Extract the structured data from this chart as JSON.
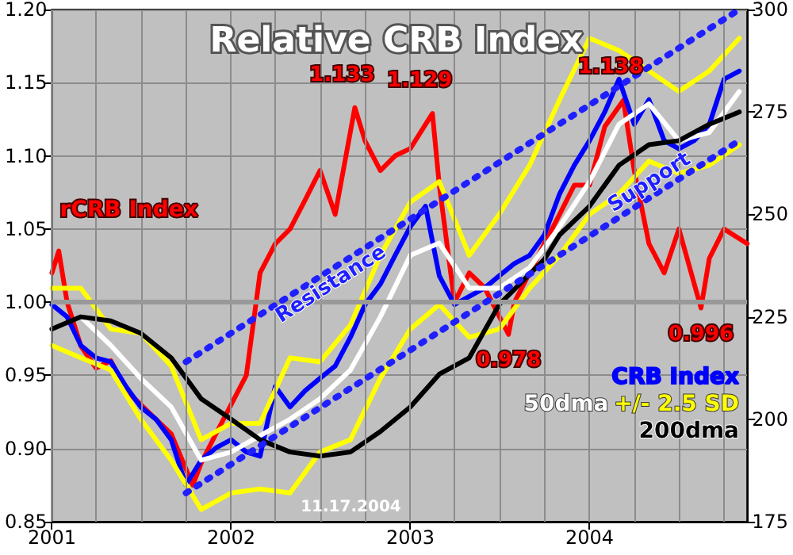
{
  "chart_data": {
    "type": "line",
    "title": "Relative CRB Index",
    "xlim": [
      "2001-01-01",
      "2004-11-17"
    ],
    "xticks": [
      "2001",
      {
        "value": "2001-04",
        "label": null
      },
      {
        "value": "2001-07",
        "label": null
      },
      {
        "value": "2001-10",
        "label": null
      },
      "2002",
      {
        "value": "2002-04",
        "label": null
      },
      {
        "value": "2002-07",
        "label": null
      },
      {
        "value": "2002-10",
        "label": null
      },
      "2003",
      {
        "value": "2003-04",
        "label": null
      },
      {
        "value": "2003-07",
        "label": null
      },
      {
        "value": "2003-10",
        "label": null
      },
      "2004",
      {
        "value": "2004-04",
        "label": null
      },
      {
        "value": "2004-07",
        "label": null
      },
      {
        "value": "2004-10",
        "label": null
      }
    ],
    "ylim": [
      0.85,
      1.2
    ],
    "yticks": [
      0.85,
      {
        "value": 0.9,
        "label": "0.90"
      },
      0.95,
      {
        "value": 1.0,
        "label": "1.00"
      },
      1.05,
      {
        "value": 1.1,
        "label": "1.10"
      },
      1.15,
      {
        "value": 1.2,
        "label": "1.20"
      }
    ],
    "y2lim": [
      175,
      300
    ],
    "y2ticks": [
      175,
      200,
      225,
      250,
      275,
      300
    ],
    "grid": true,
    "legend": "bottom right",
    "line_style": "solid",
    "ref_lines": [
      {
        "axis": "y",
        "value": 1.0,
        "color": "#999999"
      }
    ],
    "series": [
      {
        "name": "rCRB Index",
        "color": "#ff0000",
        "x": [
          "2001-01",
          "2001-01-15",
          "2001-02",
          "2001-03",
          "2001-04",
          "2001-05",
          "2001-06",
          "2001-07",
          "2001-08",
          "2001-09",
          "2001-10-15",
          "2001-11",
          "2001-12",
          "2002-01",
          "2002-02",
          "2002-03",
          "2002-04",
          "2002-05",
          "2002-06",
          "2002-07",
          "2002-08",
          "2002-09-10",
          "2002-10",
          "2002-11",
          "2002-12",
          "2003-01",
          "2003-02-15",
          "2003-03",
          "2003-04",
          "2003-05",
          "2003-06",
          "2003-07-20",
          "2003-08",
          "2003-09",
          "2003-10",
          "2003-11",
          "2003-12",
          "2004-01",
          "2004-02",
          "2004-03-10",
          "2004-04",
          "2004-05",
          "2004-06",
          "2004-07",
          "2004-08-15",
          "2004-09",
          "2004-10",
          "2004-11-17"
        ],
        "values": [
          1.02,
          1.035,
          1.0,
          0.97,
          0.955,
          0.96,
          0.94,
          0.93,
          0.92,
          0.91,
          0.875,
          0.89,
          0.91,
          0.93,
          0.95,
          1.02,
          1.04,
          1.05,
          1.07,
          1.09,
          1.06,
          1.133,
          1.11,
          1.09,
          1.1,
          1.105,
          1.129,
          1.08,
          1.0,
          1.02,
          1.01,
          0.978,
          1.0,
          1.02,
          1.04,
          1.06,
          1.08,
          1.08,
          1.12,
          1.138,
          1.09,
          1.04,
          1.02,
          1.05,
          0.996,
          1.03,
          1.05,
          1.04
        ]
      },
      {
        "name": "CRB Index",
        "color": "#0000ff",
        "axis": "y2",
        "x": [
          "2001-01",
          "2001-02",
          "2001-03",
          "2001-04",
          "2001-05",
          "2001-06",
          "2001-07",
          "2001-08",
          "2001-09",
          "2001-10",
          "2001-11",
          "2001-12",
          "2002-01",
          "2002-02",
          "2002-03",
          "2002-04",
          "2002-05",
          "2002-06",
          "2002-07",
          "2002-08",
          "2002-09",
          "2002-10",
          "2002-11",
          "2002-12",
          "2003-01",
          "2003-02",
          "2003-03",
          "2003-04",
          "2003-05",
          "2003-06",
          "2003-07",
          "2003-08",
          "2003-09",
          "2003-10",
          "2003-11",
          "2003-12",
          "2004-01",
          "2004-02",
          "2004-03",
          "2004-04",
          "2004-05",
          "2004-06",
          "2004-07",
          "2004-08",
          "2004-09",
          "2004-10",
          "2004-11"
        ],
        "values": [
          228,
          225,
          218,
          215,
          214,
          208,
          203,
          200,
          195,
          184,
          190,
          193,
          195,
          192,
          191,
          208,
          203,
          207,
          210,
          213,
          220,
          228,
          233,
          240,
          247,
          252,
          235,
          228,
          230,
          232,
          235,
          238,
          240,
          245,
          255,
          262,
          268,
          275,
          283,
          272,
          278,
          268,
          266,
          268,
          272,
          283,
          285
        ]
      },
      {
        "name": "50dma",
        "color": "#ffffff",
        "axis": "y2",
        "x": [
          "2001-03",
          "2001-05",
          "2001-07",
          "2001-09",
          "2001-11",
          "2002-01",
          "2002-03",
          "2002-05",
          "2002-07",
          "2002-09",
          "2002-11",
          "2003-01",
          "2003-03",
          "2003-05",
          "2003-07",
          "2003-09",
          "2003-11",
          "2004-01",
          "2004-03",
          "2004-05",
          "2004-07",
          "2004-09",
          "2004-11"
        ],
        "values": [
          225,
          218,
          210,
          203,
          190,
          192,
          196,
          200,
          205,
          212,
          225,
          240,
          243,
          232,
          232,
          237,
          247,
          258,
          272,
          277,
          268,
          270,
          280
        ]
      },
      {
        "name": "+/- 2.5 SD",
        "color": "#ffff00",
        "axis": "y2",
        "x": [
          "2001-01",
          "2001-03",
          "2001-05",
          "2001-07",
          "2001-09",
          "2001-11",
          "2002-01",
          "2002-03",
          "2002-05",
          "2002-07",
          "2002-09",
          "2002-11",
          "2003-01",
          "2003-03",
          "2003-05",
          "2003-07",
          "2003-09",
          "2003-11",
          "2004-01",
          "2004-03",
          "2004-05",
          "2004-07",
          "2004-09",
          "2004-11"
        ],
        "values": [
          232,
          232,
          222,
          221,
          213,
          195,
          199,
          199,
          215,
          214,
          223,
          240,
          253,
          258,
          240,
          250,
          262,
          278,
          293,
          290,
          285,
          280,
          285,
          293
        ]
      },
      {
        "color": "#ffff00",
        "axis": "y2",
        "x": [
          "2001-01",
          "2001-03",
          "2001-05",
          "2001-07",
          "2001-09",
          "2001-11",
          "2002-01",
          "2002-03",
          "2002-05",
          "2002-07",
          "2002-09",
          "2002-11",
          "2003-01",
          "2003-03",
          "2003-05",
          "2003-07",
          "2003-09",
          "2003-11",
          "2004-01",
          "2004-03",
          "2004-05",
          "2004-07",
          "2004-09",
          "2004-11"
        ],
        "values": [
          218,
          215,
          212,
          200,
          190,
          178,
          182,
          183,
          182,
          192,
          195,
          210,
          222,
          228,
          220,
          222,
          232,
          240,
          250,
          255,
          263,
          260,
          262,
          267
        ]
      },
      {
        "name": "200dma",
        "color": "#000000",
        "axis": "y2",
        "x": [
          "2001-01",
          "2001-03",
          "2001-05",
          "2001-07",
          "2001-09",
          "2001-11",
          "2002-01",
          "2002-03",
          "2002-05",
          "2002-07",
          "2002-09",
          "2002-11",
          "2003-01",
          "2003-03",
          "2003-05",
          "2003-07",
          "2003-10",
          "2003-11",
          "2004-01",
          "2004-03",
          "2004-05",
          "2004-07",
          "2004-09",
          "2004-11"
        ],
        "values": [
          222,
          225,
          224,
          221,
          215,
          205,
          200,
          195,
          192,
          191,
          192,
          197,
          203,
          211,
          215,
          228,
          239,
          245,
          252,
          262,
          267,
          268,
          272,
          275
        ]
      },
      {
        "name": "Resistance",
        "color": "#1f1fff",
        "axis": "y2",
        "line_style": "dotted",
        "x": [
          "2001-10",
          "2004-11"
        ],
        "values": [
          214,
          300
        ]
      },
      {
        "name": "Support",
        "color": "#1f1fff",
        "axis": "y2",
        "line_style": "dotted",
        "x": [
          "2001-10",
          "2004-11"
        ],
        "values": [
          182,
          268
        ]
      }
    ],
    "annotations": [
      {
        "text": "1.133",
        "x": "2002-09-10",
        "y": 1.133
      },
      {
        "text": "1.129",
        "x": "2003-02-15",
        "y": 1.129
      },
      {
        "text": "1.138",
        "x": "2004-03-10",
        "y": 1.138
      },
      {
        "text": "0.978",
        "x": "2003-07-20",
        "y": 0.978
      },
      {
        "text": "0.996",
        "x": "2004-08-15",
        "y": 0.996
      },
      "11.17.2004"
    ]
  }
}
